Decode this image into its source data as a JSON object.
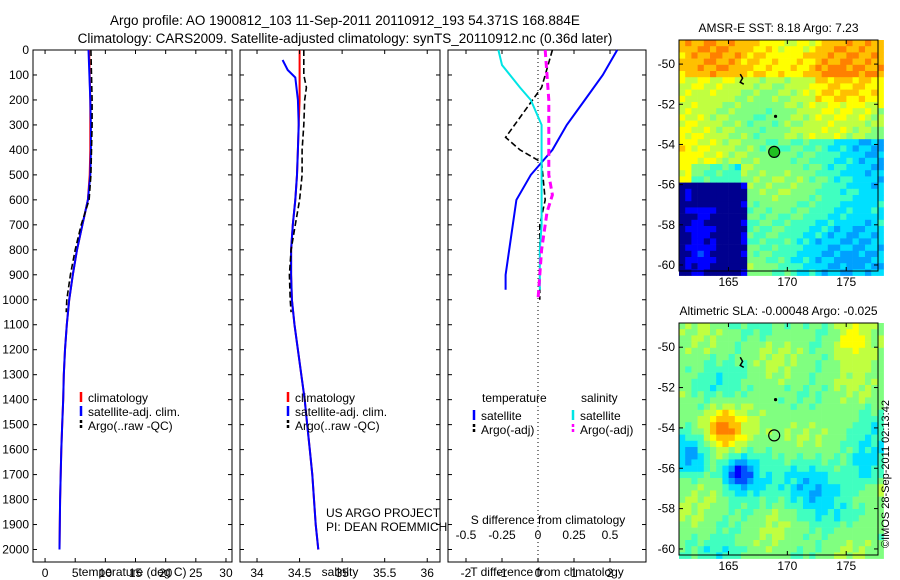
{
  "header": {
    "line1": "Argo profile: AO 1900812_103 11-Sep-2011 20110912_193 54.371S 168.884E",
    "line2": "Climatology: CARS2009. Satellite-adjusted climatology: synTS_20110912.nc (0.36d later)"
  },
  "colors": {
    "climatology": "#ff0000",
    "satellite": "#0000ff",
    "argo": "#000000",
    "sal_satellite": "#00e5e5",
    "sal_argo": "#ff00ff"
  },
  "credits": {
    "project": "US ARGO PROJECT",
    "pi": "PI: DEAN ROEMMICH"
  },
  "imos_stamp": "©IMOS 28-Sep-2011 02:13:42",
  "chart_data": [
    {
      "type": "line",
      "xlabel": "temperature (deg C)",
      "ylabel": "",
      "xlim": [
        -2,
        31
      ],
      "ylim": [
        2050,
        0
      ],
      "xticks": [
        0,
        5,
        10,
        15,
        20,
        25,
        30
      ],
      "yticks": [
        0,
        100,
        200,
        300,
        400,
        500,
        600,
        700,
        800,
        900,
        1000,
        1100,
        1200,
        1300,
        1400,
        1500,
        1600,
        1700,
        1800,
        1900,
        2000
      ],
      "legend": [
        {
          "label": "climatology",
          "color": "#ff0000"
        },
        {
          "label": "satellite-adj. clim.",
          "color": "#0000ff"
        },
        {
          "label": "Argo(..raw -QC)",
          "color": "#000000"
        }
      ],
      "legend_position": "lower-middle",
      "series": [
        {
          "name": "climatology",
          "color": "#ff0000",
          "dash": false,
          "points": [
            [
              7.3,
              0
            ],
            [
              7.4,
              100
            ],
            [
              7.5,
              200
            ],
            [
              7.5,
              300
            ],
            [
              7.5,
              400
            ],
            [
              7.4,
              500
            ],
            [
              7.1,
              600
            ],
            [
              6.2,
              700
            ],
            [
              5.3,
              800
            ],
            [
              4.6,
              900
            ],
            [
              4.0,
              1000
            ],
            [
              3.6,
              1100
            ],
            [
              3.3,
              1200
            ],
            [
              3.1,
              1300
            ],
            [
              3.0,
              1400
            ],
            [
              2.85,
              1500
            ],
            [
              2.7,
              1600
            ],
            [
              2.6,
              1700
            ],
            [
              2.5,
              1800
            ],
            [
              2.45,
              1900
            ],
            [
              2.4,
              2000
            ]
          ]
        },
        {
          "name": "satellite-adj. clim.",
          "color": "#0000ff",
          "dash": false,
          "points": [
            [
              7.2,
              0
            ],
            [
              7.35,
              100
            ],
            [
              7.5,
              200
            ],
            [
              7.6,
              300
            ],
            [
              7.6,
              400
            ],
            [
              7.5,
              500
            ],
            [
              7.1,
              600
            ],
            [
              6.2,
              700
            ],
            [
              5.3,
              800
            ],
            [
              4.6,
              900
            ],
            [
              4.0,
              1000
            ],
            [
              3.6,
              1100
            ],
            [
              3.3,
              1200
            ],
            [
              3.1,
              1300
            ],
            [
              3.0,
              1400
            ],
            [
              2.85,
              1500
            ],
            [
              2.7,
              1600
            ],
            [
              2.6,
              1700
            ],
            [
              2.5,
              1800
            ],
            [
              2.45,
              1900
            ],
            [
              2.4,
              2000
            ]
          ]
        },
        {
          "name": "Argo(..raw -QC)",
          "color": "#000000",
          "dash": true,
          "points": [
            [
              7.6,
              0
            ],
            [
              7.7,
              100
            ],
            [
              7.8,
              200
            ],
            [
              7.8,
              300
            ],
            [
              7.7,
              400
            ],
            [
              7.6,
              500
            ],
            [
              7.3,
              600
            ],
            [
              6.0,
              700
            ],
            [
              5.0,
              800
            ],
            [
              4.2,
              900
            ],
            [
              3.6,
              1000
            ],
            [
              3.5,
              1050
            ]
          ]
        }
      ]
    },
    {
      "type": "line",
      "xlabel": "salinity",
      "xlim": [
        33.8,
        36.15
      ],
      "ylim": [
        2050,
        0
      ],
      "xticks": [
        34,
        34.5,
        35,
        35.5,
        36
      ],
      "legend": [
        {
          "label": "climatology",
          "color": "#ff0000"
        },
        {
          "label": "satellite-adj. clim.",
          "color": "#0000ff"
        },
        {
          "label": "Argo(..raw -QC)",
          "color": "#000000"
        }
      ],
      "legend_position": "lower-middle",
      "series": [
        {
          "name": "climatology",
          "color": "#ff0000",
          "dash": false,
          "points": [
            [
              34.5,
              0
            ],
            [
              34.5,
              100
            ],
            [
              34.5,
              200
            ],
            [
              34.49,
              300
            ],
            [
              34.48,
              400
            ],
            [
              34.47,
              500
            ],
            [
              34.45,
              600
            ],
            [
              34.42,
              700
            ],
            [
              34.4,
              800
            ],
            [
              34.4,
              900
            ],
            [
              34.41,
              1000
            ],
            [
              34.44,
              1100
            ],
            [
              34.48,
              1200
            ],
            [
              34.52,
              1300
            ],
            [
              34.56,
              1400
            ],
            [
              34.59,
              1500
            ],
            [
              34.62,
              1600
            ],
            [
              34.65,
              1700
            ],
            [
              34.67,
              1800
            ],
            [
              34.69,
              1900
            ],
            [
              34.72,
              2000
            ]
          ]
        },
        {
          "name": "satellite-adj. clim.",
          "color": "#0000ff",
          "dash": false,
          "points": [
            [
              34.3,
              40
            ],
            [
              34.36,
              80
            ],
            [
              34.45,
              110
            ],
            [
              34.48,
              200
            ],
            [
              34.49,
              300
            ],
            [
              34.48,
              400
            ],
            [
              34.47,
              500
            ],
            [
              34.45,
              600
            ],
            [
              34.42,
              700
            ],
            [
              34.4,
              800
            ],
            [
              34.4,
              900
            ],
            [
              34.41,
              1000
            ],
            [
              34.44,
              1100
            ],
            [
              34.48,
              1200
            ],
            [
              34.52,
              1300
            ],
            [
              34.56,
              1400
            ],
            [
              34.59,
              1500
            ],
            [
              34.62,
              1600
            ],
            [
              34.65,
              1700
            ],
            [
              34.67,
              1800
            ],
            [
              34.69,
              1900
            ],
            [
              34.72,
              2000
            ]
          ]
        },
        {
          "name": "Argo(..raw -QC)",
          "color": "#000000",
          "dash": true,
          "points": [
            [
              34.55,
              0
            ],
            [
              34.55,
              100
            ],
            [
              34.58,
              150
            ],
            [
              34.56,
              200
            ],
            [
              34.55,
              300
            ],
            [
              34.53,
              400
            ],
            [
              34.53,
              500
            ],
            [
              34.5,
              600
            ],
            [
              34.45,
              700
            ],
            [
              34.4,
              800
            ],
            [
              34.38,
              900
            ],
            [
              34.39,
              1000
            ],
            [
              34.4,
              1050
            ]
          ]
        }
      ]
    },
    {
      "type": "line",
      "xlabel": "T difference from climatology",
      "x2label": "S difference from climatology",
      "xlim": [
        -2.5,
        3.0
      ],
      "ylim": [
        2050,
        0
      ],
      "xticks": [
        -2,
        -1,
        0,
        1,
        2
      ],
      "x2ticks": [
        "-0.5",
        "-0.25",
        "0",
        "0.25",
        "0.5"
      ],
      "legend_temperature_title": "temperature",
      "legend_salinity_title": "salinity",
      "legend": [
        {
          "label": "satellite",
          "color": "#0000ff"
        },
        {
          "label": "Argo(-adj)",
          "color": "#000000"
        },
        {
          "label": "satellite",
          "color": "#00e5e5"
        },
        {
          "label": "Argo(-adj)",
          "color": "#ff00ff"
        }
      ],
      "legend_position": "lower-middle",
      "series": [
        {
          "name": "T satellite",
          "color": "#0000ff",
          "dash": false,
          "points": [
            [
              2.2,
              0
            ],
            [
              1.8,
              100
            ],
            [
              1.3,
              200
            ],
            [
              0.8,
              300
            ],
            [
              0.4,
              400
            ],
            [
              -0.2,
              500
            ],
            [
              -0.6,
              600
            ],
            [
              -0.7,
              700
            ],
            [
              -0.8,
              800
            ],
            [
              -0.9,
              900
            ],
            [
              -0.9,
              960
            ]
          ]
        },
        {
          "name": "T Argo(-adj)",
          "color": "#000000",
          "dash": true,
          "points": [
            [
              0.4,
              0
            ],
            [
              0.2,
              100
            ],
            [
              0.1,
              150
            ],
            [
              -0.4,
              250
            ],
            [
              -0.9,
              350
            ],
            [
              -0.5,
              400
            ],
            [
              0.1,
              450
            ],
            [
              0.2,
              600
            ],
            [
              0.05,
              700
            ],
            [
              0.05,
              800
            ],
            [
              0.05,
              900
            ],
            [
              0.05,
              1000
            ]
          ]
        },
        {
          "name": "S satellite",
          "color": "#00e5e5",
          "dash": false,
          "points": [
            [
              -1.1,
              0
            ],
            [
              -1.0,
              60
            ],
            [
              -0.5,
              150
            ],
            [
              -0.2,
              200
            ],
            [
              0.1,
              300
            ],
            [
              0.1,
              400
            ],
            [
              0.1,
              500
            ],
            [
              0.1,
              600
            ],
            [
              0.1,
              700
            ],
            [
              0.05,
              800
            ],
            [
              0.05,
              900
            ],
            [
              0.05,
              960
            ]
          ]
        },
        {
          "name": "S Argo(-adj)",
          "color": "#ff00ff",
          "dash": true,
          "points": [
            [
              0.2,
              0
            ],
            [
              0.25,
              100
            ],
            [
              0.3,
              200
            ],
            [
              0.3,
              300
            ],
            [
              0.3,
              400
            ],
            [
              0.3,
              500
            ],
            [
              0.4,
              580
            ],
            [
              0.25,
              650
            ],
            [
              0.2,
              700
            ],
            [
              0.1,
              800
            ],
            [
              0.05,
              900
            ],
            [
              0.0,
              1000
            ]
          ]
        }
      ]
    },
    {
      "type": "heatmap",
      "title": "AMSR-E SST: 8.18 Argo: 7.23",
      "xlim": [
        160.8,
        177.7
      ],
      "ylim": [
        -60.3,
        -48.8
      ],
      "xticks": [
        165,
        170,
        175
      ],
      "yticks": [
        -50,
        -52,
        -54,
        -56,
        -58,
        -60
      ],
      "marker": {
        "lon": 168.884,
        "lat": -54.371
      },
      "colorscale": [
        "#00008f",
        "#0000ff",
        "#007fff",
        "#00ffff",
        "#7fff7f",
        "#ffff00",
        "#ff7f00",
        "#ff0000"
      ]
    },
    {
      "type": "heatmap",
      "title": "Altimetric SLA: -0.00048 Argo: -0.025",
      "xlim": [
        160.8,
        177.7
      ],
      "ylim": [
        -60.3,
        -48.8
      ],
      "xticks": [
        165,
        170,
        175
      ],
      "yticks": [
        -50,
        -52,
        -54,
        -56,
        -58,
        -60
      ],
      "marker": {
        "lon": 168.884,
        "lat": -54.371
      },
      "colorscale": [
        "#00008f",
        "#0000ff",
        "#007fff",
        "#00ffff",
        "#7fff7f",
        "#ffff00",
        "#ff7f00",
        "#ff0000"
      ]
    }
  ]
}
